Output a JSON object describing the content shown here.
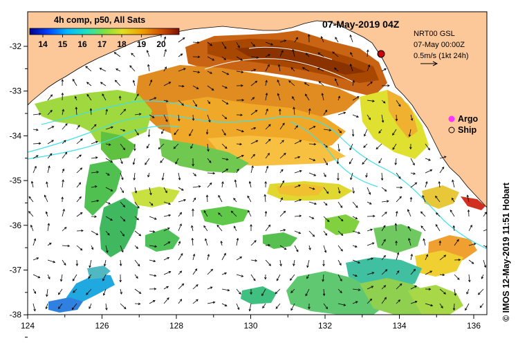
{
  "colorbar": {
    "title": "4h comp, p50, All Sats",
    "ticks": [
      "14",
      "15",
      "16",
      "17",
      "18",
      "19",
      "20"
    ]
  },
  "date_title": "07-May-2019 04Z",
  "info": {
    "product": "NRT00 GSL",
    "time": "07-May 00:00Z",
    "scale": "0.5m/s (1kt 24h)"
  },
  "legend": {
    "argo": "Argo",
    "ship": "Ship"
  },
  "axes": {
    "lon_ticks": [
      "124",
      "126",
      "128",
      "130",
      "132",
      "134",
      "136"
    ],
    "lat_ticks": [
      "-32",
      "-33",
      "-34",
      "-35",
      "-36",
      "-37",
      "-38"
    ]
  },
  "copyright": "© IMOS 12-May-2019 11:51 Hobart",
  "colors": {
    "land": "#fcc89a",
    "ocean": "#ffffff",
    "contour": "#40e0e8",
    "ship_marker": "#cc0000",
    "argo_marker": "#ff33ff"
  }
}
